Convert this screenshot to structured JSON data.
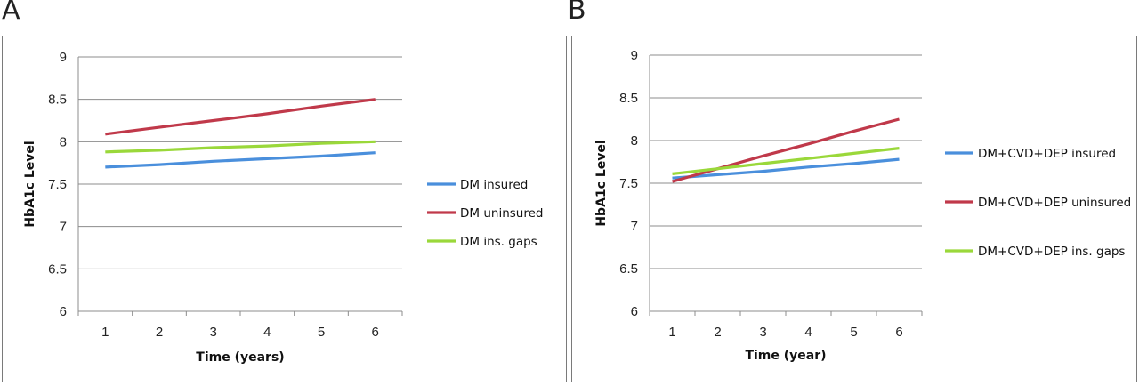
{
  "panels": [
    {
      "letter": "A"
    },
    {
      "letter": "B"
    }
  ],
  "chart_data": [
    {
      "type": "line",
      "x": [
        1,
        2,
        3,
        4,
        5,
        6
      ],
      "xlabel": "Time (years)",
      "ylabel": "HbA1c Level",
      "ylim": [
        6,
        9
      ],
      "yticks": [
        "6",
        "6.5",
        "7",
        "7.5",
        "8",
        "8.5",
        "9"
      ],
      "xticks": [
        "1",
        "2",
        "3",
        "4",
        "5",
        "6"
      ],
      "grid": "horizontal",
      "legend": "right",
      "series": [
        {
          "name": "DM insured",
          "color": "#4a8fdc",
          "values": [
            7.7,
            7.73,
            7.77,
            7.8,
            7.83,
            7.87
          ]
        },
        {
          "name": "DM uninsured",
          "color": "#c0394a",
          "values": [
            8.09,
            8.17,
            8.25,
            8.33,
            8.42,
            8.5
          ]
        },
        {
          "name": "DM ins. gaps",
          "color": "#9ad83a",
          "values": [
            7.88,
            7.9,
            7.93,
            7.95,
            7.98,
            8.0
          ]
        }
      ]
    },
    {
      "type": "line",
      "x": [
        1,
        2,
        3,
        4,
        5,
        6
      ],
      "xlabel": "Time (year)",
      "ylabel": "HbA1c Level",
      "ylim": [
        6,
        9
      ],
      "yticks": [
        "6",
        "6.5",
        "7",
        "7.5",
        "8",
        "8.5",
        "9"
      ],
      "xticks": [
        "1",
        "2",
        "3",
        "4",
        "5",
        "6"
      ],
      "grid": "horizontal",
      "legend": "right",
      "series": [
        {
          "name": "DM+CVD+DEP insured",
          "color": "#4a8fdc",
          "values": [
            7.56,
            7.6,
            7.64,
            7.69,
            7.73,
            7.78
          ]
        },
        {
          "name": "DM+CVD+DEP uninsured",
          "color": "#c0394a",
          "values": [
            7.52,
            7.67,
            7.82,
            7.96,
            8.11,
            8.25
          ]
        },
        {
          "name": "DM+CVD+DEP ins. gaps",
          "color": "#9ad83a",
          "values": [
            7.61,
            7.67,
            7.73,
            7.79,
            7.85,
            7.91
          ]
        }
      ]
    }
  ]
}
